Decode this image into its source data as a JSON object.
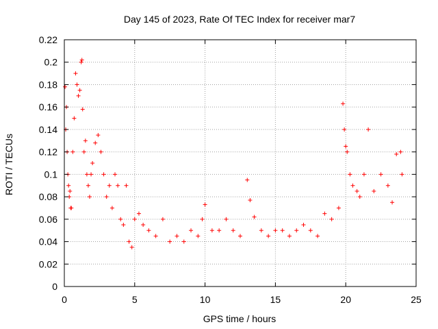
{
  "chart_data": {
    "type": "scatter",
    "title": "Day 145 of 2023, Rate Of TEC Index for receiver mar7",
    "xlabel": "GPS time / hours",
    "ylabel": "ROTI / TECUs",
    "xlim": [
      0,
      25
    ],
    "ylim": [
      0,
      0.22
    ],
    "xticks": [
      "0",
      "5",
      "10",
      "15",
      "20",
      "25"
    ],
    "yticks": [
      "0",
      "0.02",
      "0.04",
      "0.06",
      "0.08",
      "0.1",
      "0.12",
      "0.14",
      "0.16",
      "0.18",
      "0.2",
      "0.22"
    ],
    "grid": true,
    "marker": "+",
    "color": "#ff0000",
    "series": [
      {
        "x": [
          0.05,
          0.1,
          0.15,
          0.2,
          0.25,
          0.3,
          0.35,
          0.4,
          0.45,
          0.5,
          0.6,
          0.7,
          0.8,
          0.9,
          1.0,
          1.1,
          1.2,
          1.25,
          1.3,
          1.4,
          1.5,
          1.6,
          1.7,
          1.8,
          1.9,
          2.0,
          2.2,
          2.4,
          2.6,
          2.8,
          3.0,
          3.2,
          3.4,
          3.6,
          3.8,
          4.0,
          4.2,
          4.4,
          4.6,
          4.8,
          5.0,
          5.3,
          5.6,
          6.0,
          6.5,
          7.0,
          7.5,
          8.0,
          8.5,
          9.0,
          9.5,
          9.8,
          10.0,
          10.5,
          11.0,
          11.5,
          12.0,
          12.5,
          13.0,
          13.2,
          13.5,
          14.0,
          14.5,
          15.0,
          15.5,
          16.0,
          16.5,
          17.0,
          17.5,
          18.0,
          18.5,
          19.0,
          19.5,
          19.8,
          19.9,
          20.0,
          20.1,
          20.3,
          20.5,
          20.8,
          21.0,
          21.3,
          21.6,
          22.0,
          22.5,
          23.0,
          23.3,
          23.6,
          23.9,
          24.0
        ],
        "y": [
          0.178,
          0.14,
          0.16,
          0.12,
          0.1,
          0.09,
          0.08,
          0.085,
          0.07,
          0.07,
          0.12,
          0.15,
          0.19,
          0.18,
          0.17,
          0.175,
          0.2,
          0.202,
          0.158,
          0.12,
          0.13,
          0.1,
          0.09,
          0.08,
          0.1,
          0.11,
          0.128,
          0.135,
          0.12,
          0.1,
          0.08,
          0.09,
          0.07,
          0.1,
          0.09,
          0.06,
          0.055,
          0.09,
          0.04,
          0.035,
          0.06,
          0.065,
          0.055,
          0.05,
          0.045,
          0.06,
          0.04,
          0.045,
          0.04,
          0.05,
          0.045,
          0.06,
          0.073,
          0.05,
          0.05,
          0.06,
          0.05,
          0.045,
          0.095,
          0.077,
          0.062,
          0.05,
          0.045,
          0.05,
          0.05,
          0.045,
          0.05,
          0.055,
          0.05,
          0.045,
          0.065,
          0.06,
          0.07,
          0.163,
          0.14,
          0.125,
          0.12,
          0.1,
          0.09,
          0.085,
          0.08,
          0.1,
          0.14,
          0.085,
          0.1,
          0.09,
          0.075,
          0.118,
          0.12,
          0.1
        ]
      }
    ]
  }
}
